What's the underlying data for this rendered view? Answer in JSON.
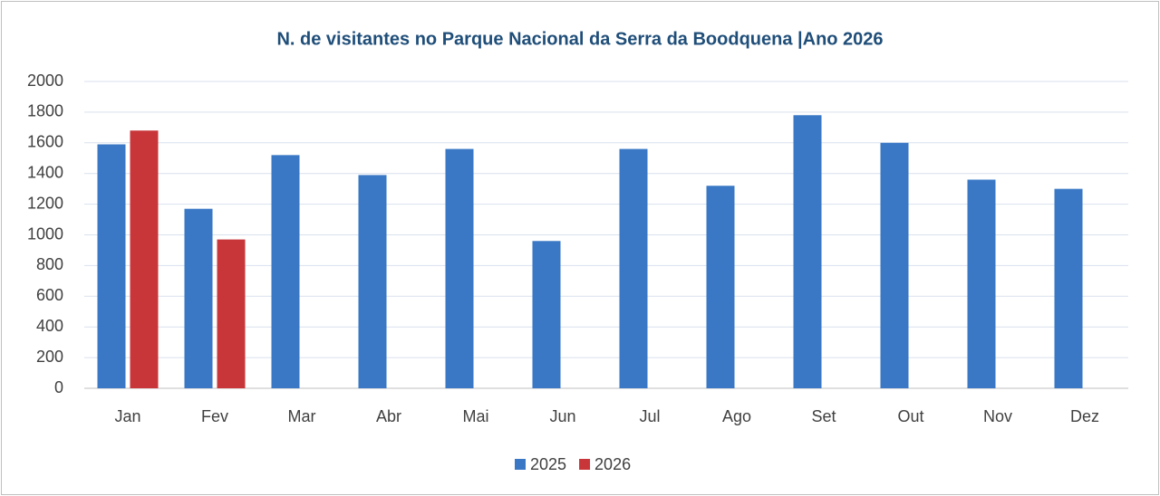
{
  "chart_data": {
    "type": "bar",
    "title": "N. de visitantes no Parque Nacional da Serra da Boodquena |Ano 2026",
    "categories": [
      "Jan",
      "Fev",
      "Mar",
      "Abr",
      "Mai",
      "Jun",
      "Jul",
      "Ago",
      "Set",
      "Out",
      "Nov",
      "Dez"
    ],
    "series": [
      {
        "name": "2025",
        "color": "#3a78c6",
        "values": [
          1590,
          1170,
          1520,
          1390,
          1560,
          960,
          1560,
          1320,
          1780,
          1600,
          1360,
          1300
        ]
      },
      {
        "name": "2026",
        "color": "#c9363a",
        "values": [
          1680,
          970,
          null,
          null,
          null,
          null,
          null,
          null,
          null,
          null,
          null,
          null
        ]
      }
    ],
    "ylim": [
      0,
      2000
    ],
    "yticks": [
      0,
      200,
      400,
      600,
      800,
      1000,
      1200,
      1400,
      1600,
      1800,
      2000
    ],
    "grid": true,
    "legend": "bottom"
  }
}
